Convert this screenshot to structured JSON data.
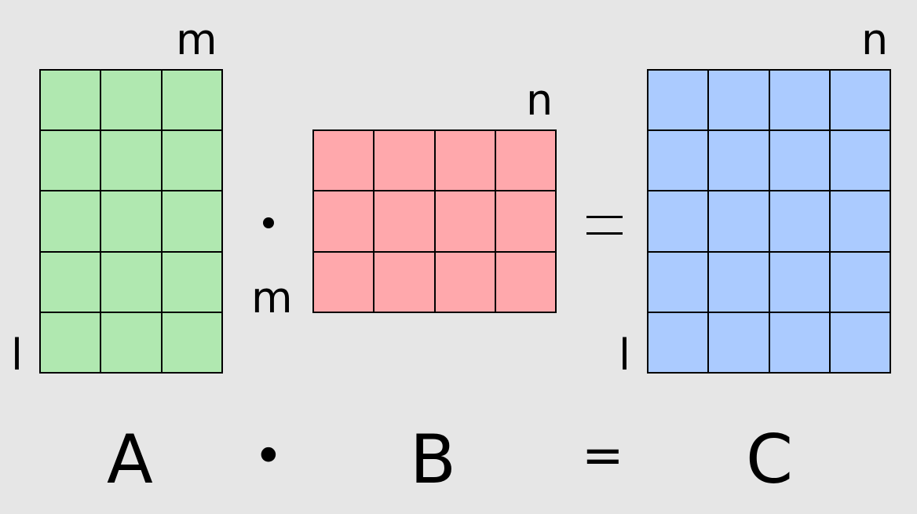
{
  "matrix_a": {
    "name": "A",
    "row_label": "l",
    "col_label": "m",
    "rows": 5,
    "cols": 3,
    "color": "#b0e8b0"
  },
  "matrix_b": {
    "name": "B",
    "row_label": "m",
    "col_label": "n",
    "rows": 3,
    "cols": 4,
    "color": "#ffa8ac"
  },
  "matrix_c": {
    "name": "C",
    "row_label": "l",
    "col_label": "n",
    "rows": 5,
    "cols": 4,
    "color": "#abcbff"
  },
  "operators": {
    "multiply": "•",
    "equals": "="
  },
  "colors": {
    "background": "#e6e6e6",
    "grid_line": "#000000"
  }
}
